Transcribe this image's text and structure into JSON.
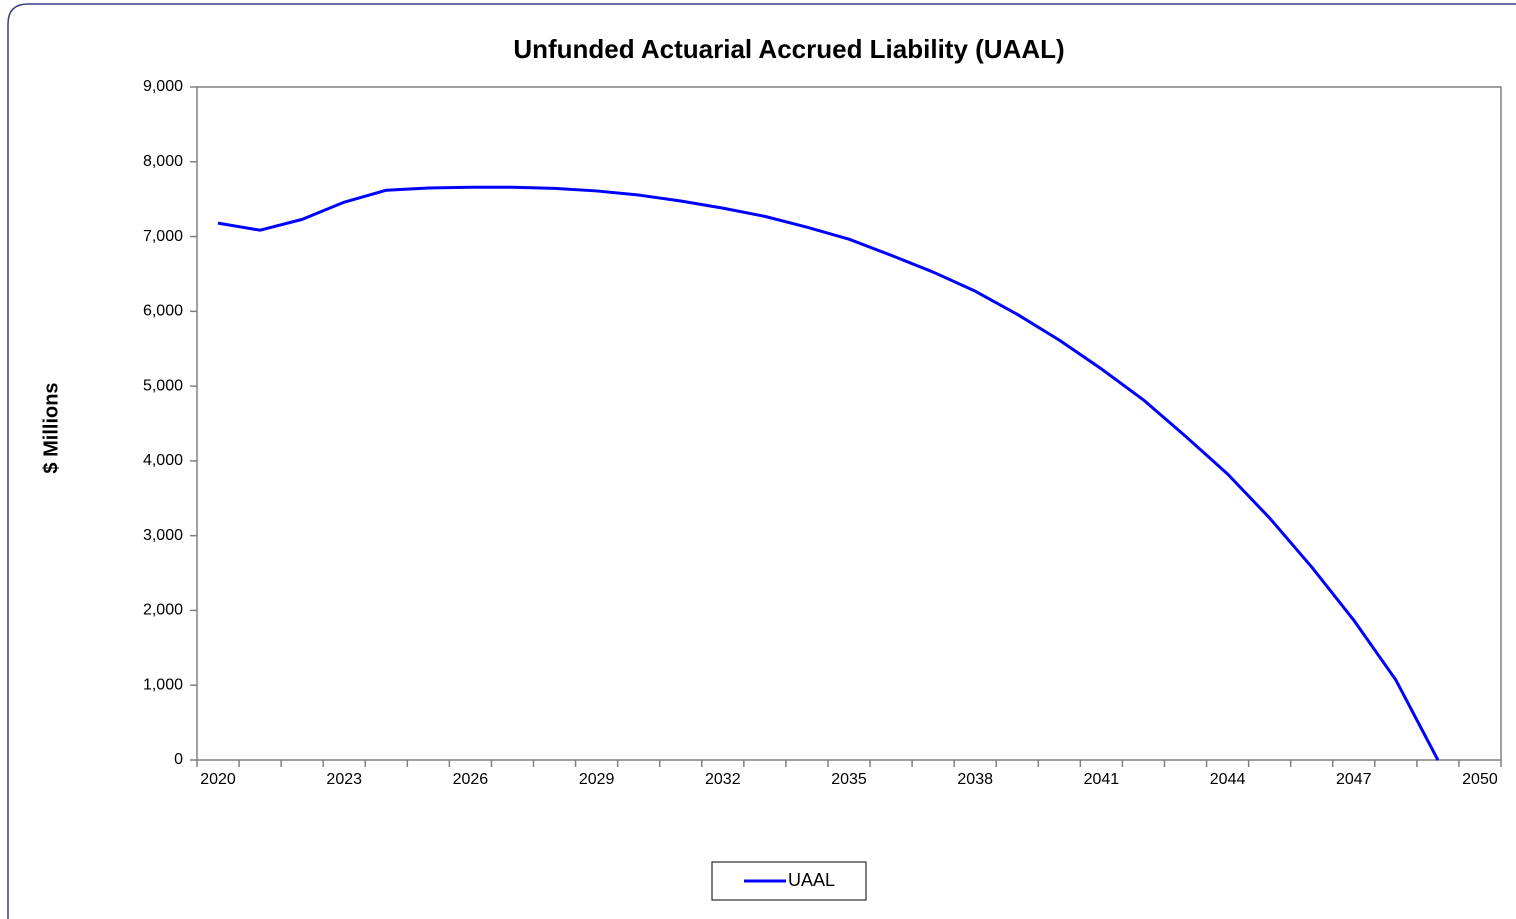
{
  "chart_data": {
    "type": "line",
    "title": "Unfunded Actuarial Accrued Liability (UAAL)",
    "y_label": "$ Millions",
    "categories": [
      2020,
      null,
      null,
      2023,
      null,
      null,
      2026,
      null,
      null,
      2029,
      null,
      null,
      2032,
      null,
      null,
      2035,
      null,
      null,
      2038,
      null,
      null,
      2041,
      null,
      null,
      2044,
      null,
      null,
      2047,
      null,
      null,
      2050
    ],
    "series": [
      {
        "name": "UAAL",
        "color": "#0000ff",
        "values": [
          7180,
          7085,
          7230,
          7460,
          7620,
          7650,
          7660,
          7660,
          7645,
          7610,
          7555,
          7475,
          7380,
          7270,
          7125,
          6965,
          6750,
          6525,
          6270,
          5960,
          5615,
          5230,
          4815,
          4330,
          3825,
          3235,
          2580,
          1870,
          1070,
          0,
          null
        ]
      }
    ],
    "ylim": [
      0,
      9000
    ],
    "yticks": [
      0,
      {
        "value": 1000,
        "label": "1,000"
      },
      {
        "value": 2000,
        "label": "2,000"
      },
      {
        "value": 3000,
        "label": "3,000"
      },
      {
        "value": 4000,
        "label": "4,000"
      },
      {
        "value": 5000,
        "label": "5,000"
      },
      {
        "value": 6000,
        "label": "6,000"
      },
      {
        "value": 7000,
        "label": "7,000"
      },
      {
        "value": 8000,
        "label": "8,000"
      },
      {
        "value": 9000,
        "label": "9,000"
      }
    ],
    "grid": false,
    "legend": "bottom"
  }
}
